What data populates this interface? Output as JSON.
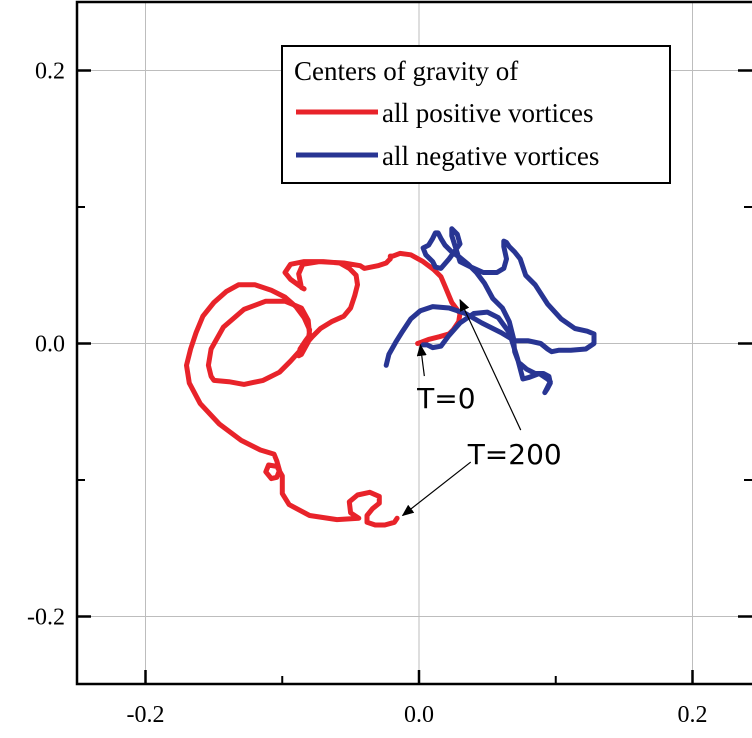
{
  "chart_data": {
    "type": "line",
    "title": "",
    "xlabel": "",
    "ylabel": "",
    "xlim": [
      -0.25,
      0.25
    ],
    "ylim": [
      -0.25,
      0.25
    ],
    "grid": true,
    "x_ticks": [
      {
        "value": -0.2,
        "label": "-0.2"
      },
      {
        "value": 0.0,
        "label": "0.0"
      },
      {
        "value": 0.2,
        "label": "0.2"
      }
    ],
    "y_ticks": [
      {
        "value": 0.2,
        "label": "0.2"
      },
      {
        "value": 0.0,
        "label": "0.0"
      },
      {
        "value": -0.2,
        "label": "-0.2"
      }
    ],
    "legend": {
      "position": "top-right",
      "title": "Centers of gravity of",
      "entries": [
        {
          "label": "all positive vortices",
          "color": "#e8232a"
        },
        {
          "label": "all negative vortices",
          "color": "#283593"
        }
      ]
    },
    "series": [
      {
        "name": "all positive vortices",
        "color": "#e8232a",
        "x": [
          -0.016,
          -0.018,
          -0.025,
          -0.032,
          -0.038,
          -0.038,
          -0.034,
          -0.029,
          -0.029,
          -0.036,
          -0.045,
          -0.051,
          -0.05,
          -0.044,
          -0.06,
          -0.08,
          -0.095,
          -0.1,
          -0.1,
          -0.104,
          -0.11,
          -0.112,
          -0.108,
          -0.104,
          -0.102,
          -0.104,
          -0.106,
          -0.116,
          -0.13,
          -0.146,
          -0.16,
          -0.168,
          -0.17,
          -0.167,
          -0.163,
          -0.158,
          -0.15,
          -0.141,
          -0.132,
          -0.12,
          -0.108,
          -0.098,
          -0.09,
          -0.084,
          -0.08,
          -0.081,
          -0.086,
          -0.088,
          -0.087,
          -0.083,
          -0.08,
          -0.081,
          -0.086,
          -0.098,
          -0.112,
          -0.128,
          -0.143,
          -0.152,
          -0.154,
          -0.152,
          -0.15,
          -0.139,
          -0.128,
          -0.114,
          -0.102,
          -0.094,
          -0.085,
          -0.078,
          -0.072,
          -0.064,
          -0.055,
          -0.05,
          -0.047,
          -0.045,
          -0.046,
          -0.051,
          -0.058,
          -0.07,
          -0.084,
          -0.094,
          -0.098,
          -0.094,
          -0.087,
          -0.084,
          -0.086,
          -0.088,
          -0.085,
          -0.073,
          -0.055,
          -0.043,
          -0.04,
          -0.03,
          -0.024,
          -0.022,
          -0.021,
          -0.021,
          -0.019,
          -0.014,
          -0.006,
          0.003,
          0.011,
          0.016,
          0.019,
          0.024,
          0.03,
          0.029,
          0.025,
          0.022,
          0.015,
          0.007,
          0.002,
          -0.001
        ],
        "y": [
          -0.128,
          -0.131,
          -0.133,
          -0.133,
          -0.131,
          -0.126,
          -0.121,
          -0.117,
          -0.112,
          -0.109,
          -0.111,
          -0.116,
          -0.124,
          -0.128,
          -0.129,
          -0.126,
          -0.118,
          -0.11,
          -0.097,
          -0.09,
          -0.089,
          -0.094,
          -0.099,
          -0.098,
          -0.093,
          -0.086,
          -0.081,
          -0.078,
          -0.071,
          -0.059,
          -0.044,
          -0.029,
          -0.016,
          -0.004,
          0.008,
          0.02,
          0.03,
          0.038,
          0.043,
          0.043,
          0.039,
          0.034,
          0.027,
          0.019,
          0.01,
          0.001,
          -0.008,
          -0.009,
          -0.004,
          0.002,
          0.006,
          0.017,
          0.026,
          0.031,
          0.031,
          0.025,
          0.012,
          -0.004,
          -0.016,
          -0.024,
          -0.027,
          -0.028,
          -0.03,
          -0.027,
          -0.021,
          -0.013,
          -0.003,
          0.005,
          0.011,
          0.016,
          0.02,
          0.026,
          0.035,
          0.043,
          0.05,
          0.055,
          0.059,
          0.06,
          0.06,
          0.058,
          0.052,
          0.047,
          0.042,
          0.04,
          0.041,
          0.051,
          0.058,
          0.06,
          0.059,
          0.057,
          0.055,
          0.057,
          0.059,
          0.061,
          0.062,
          0.064,
          0.064,
          0.066,
          0.065,
          0.06,
          0.054,
          0.049,
          0.042,
          0.03,
          0.022,
          0.016,
          0.01,
          0.007,
          0.005,
          0.003,
          0.001,
          0.0
        ]
      },
      {
        "name": "all negative vortices",
        "color": "#283593",
        "x": [
          0.003,
          0.006,
          0.01,
          0.016,
          0.022,
          0.03,
          0.04,
          0.05,
          0.058,
          0.066,
          0.072,
          0.076,
          0.08,
          0.088,
          0.094,
          0.096,
          0.094,
          0.092,
          0.094,
          0.096,
          0.095,
          0.091,
          0.085,
          0.079,
          0.073,
          0.07,
          0.069,
          0.066,
          0.061,
          0.054,
          0.048,
          0.042,
          0.036,
          0.03,
          0.024,
          0.019,
          0.016,
          0.014,
          0.012,
          0.01,
          0.007,
          0.003,
          0.005,
          0.01,
          0.012,
          0.016,
          0.022,
          0.03,
          0.028,
          0.024,
          0.024,
          0.03,
          0.038,
          0.047,
          0.057,
          0.062,
          0.064,
          0.062,
          0.062,
          0.064,
          0.066,
          0.07,
          0.074,
          0.078,
          0.085,
          0.094,
          0.104,
          0.114,
          0.123,
          0.128,
          0.128,
          0.122,
          0.111,
          0.102,
          0.097,
          0.094,
          0.089,
          0.08,
          0.07,
          0.06,
          0.046,
          0.034,
          0.022,
          0.01,
          0.001,
          -0.006,
          -0.012,
          -0.017,
          -0.022,
          -0.024
        ],
        "y": [
          -0.001,
          -0.001,
          -0.003,
          -0.002,
          0.006,
          0.015,
          0.022,
          0.023,
          0.019,
          0.008,
          -0.011,
          -0.026,
          -0.025,
          -0.022,
          -0.026,
          -0.028,
          -0.032,
          -0.036,
          -0.033,
          -0.029,
          -0.024,
          -0.022,
          -0.022,
          -0.019,
          -0.014,
          -0.006,
          0.004,
          0.016,
          0.026,
          0.033,
          0.044,
          0.052,
          0.058,
          0.063,
          0.067,
          0.072,
          0.077,
          0.081,
          0.081,
          0.077,
          0.072,
          0.07,
          0.065,
          0.06,
          0.056,
          0.055,
          0.062,
          0.073,
          0.08,
          0.084,
          0.079,
          0.06,
          0.056,
          0.052,
          0.052,
          0.055,
          0.062,
          0.071,
          0.075,
          0.074,
          0.071,
          0.067,
          0.062,
          0.05,
          0.043,
          0.029,
          0.018,
          0.011,
          0.009,
          0.007,
          0.0,
          -0.004,
          -0.005,
          -0.005,
          -0.006,
          -0.004,
          0.0,
          0.002,
          0.002,
          0.008,
          0.015,
          0.022,
          0.026,
          0.027,
          0.024,
          0.018,
          0.009,
          0.001,
          -0.008,
          -0.016
        ]
      }
    ],
    "annotations": [
      {
        "text": "T=0",
        "x": 0.02,
        "y": -0.04,
        "arrow_to": [
          0.001,
          -0.001
        ]
      },
      {
        "text": "T=200",
        "x": 0.07,
        "y": -0.081,
        "arrow_to": [
          [
            -0.012,
            -0.126
          ],
          [
            0.03,
            0.032
          ]
        ]
      }
    ]
  }
}
